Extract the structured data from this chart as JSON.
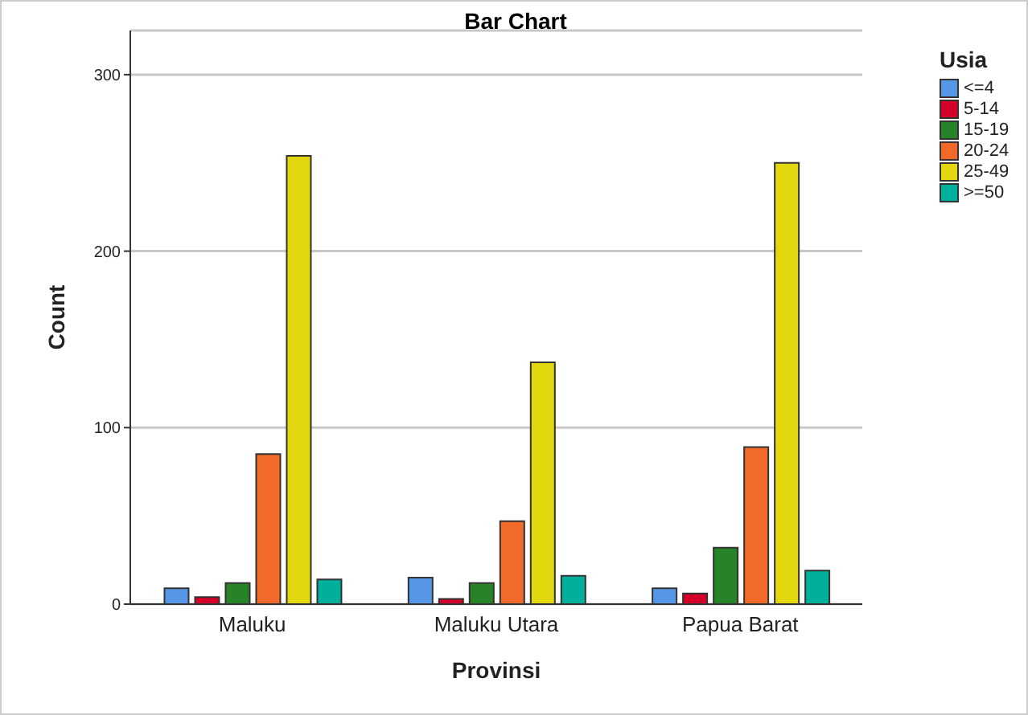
{
  "chart_data": {
    "type": "bar",
    "title": "Bar Chart",
    "xlabel": "Provinsi",
    "ylabel": "Count",
    "legend_title": "Usia",
    "categories": [
      "Maluku",
      "Maluku Utara",
      "Papua Barat"
    ],
    "series": [
      {
        "name": "<=4",
        "color": "#5596e6",
        "values": [
          9,
          15,
          9
        ]
      },
      {
        "name": "5-14",
        "color": "#d5002a",
        "values": [
          4,
          3,
          6
        ]
      },
      {
        "name": "15-19",
        "color": "#288228",
        "values": [
          12,
          12,
          32
        ]
      },
      {
        "name": "20-24",
        "color": "#f26a2a",
        "values": [
          85,
          47,
          89
        ]
      },
      {
        "name": "25-49",
        "color": "#e2d70f",
        "values": [
          254,
          137,
          250
        ]
      },
      {
        "name": ">=50",
        "color": "#00b09c",
        "values": [
          14,
          16,
          19
        ]
      }
    ],
    "ylim": [
      0,
      325
    ],
    "yticks": [
      0,
      100,
      200,
      300
    ],
    "grid": "y",
    "legend": "top right"
  }
}
